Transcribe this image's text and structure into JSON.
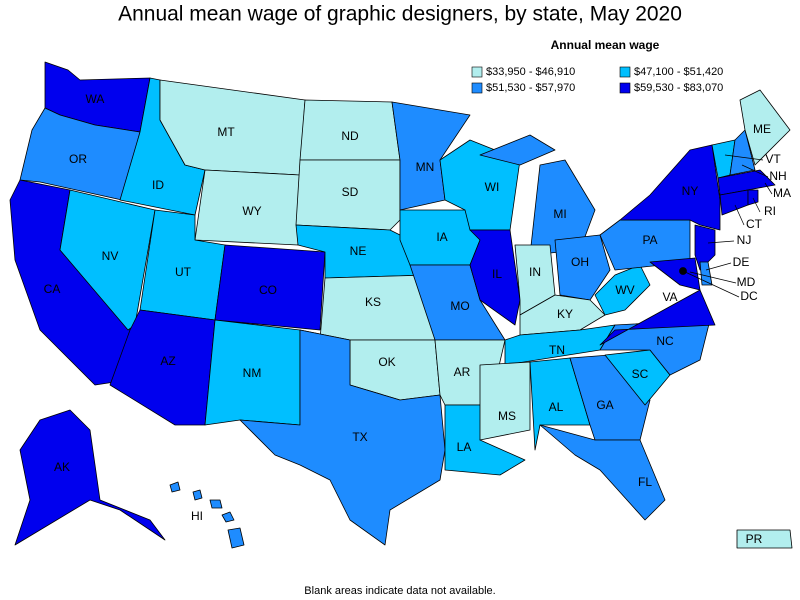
{
  "title": "Annual mean wage of graphic designers, by state, May 2020",
  "legend": {
    "title": "Annual mean wage",
    "items": [
      {
        "label": "$33,950 - $46,910",
        "color": "#b2eeee"
      },
      {
        "label": "$47,100 - $51,420",
        "color": "#00bfff"
      },
      {
        "label": "$51,530 - $57,970",
        "color": "#1e8cff"
      },
      {
        "label": "$59,530 - $83,070",
        "color": "#0000ee"
      }
    ]
  },
  "states": [
    {
      "abbr": "WA",
      "class": 3
    },
    {
      "abbr": "OR",
      "class": 2
    },
    {
      "abbr": "CA",
      "class": 3
    },
    {
      "abbr": "NV",
      "class": 1
    },
    {
      "abbr": "ID",
      "class": 1
    },
    {
      "abbr": "MT",
      "class": 0
    },
    {
      "abbr": "WY",
      "class": 0
    },
    {
      "abbr": "UT",
      "class": 1
    },
    {
      "abbr": "AZ",
      "class": 3
    },
    {
      "abbr": "CO",
      "class": 3
    },
    {
      "abbr": "NM",
      "class": 1
    },
    {
      "abbr": "ND",
      "class": 0
    },
    {
      "abbr": "SD",
      "class": 0
    },
    {
      "abbr": "NE",
      "class": 1
    },
    {
      "abbr": "KS",
      "class": 0
    },
    {
      "abbr": "OK",
      "class": 0
    },
    {
      "abbr": "TX",
      "class": 2
    },
    {
      "abbr": "MN",
      "class": 2
    },
    {
      "abbr": "IA",
      "class": 1
    },
    {
      "abbr": "MO",
      "class": 2
    },
    {
      "abbr": "AR",
      "class": 0
    },
    {
      "abbr": "LA",
      "class": 1
    },
    {
      "abbr": "WI",
      "class": 1
    },
    {
      "abbr": "IL",
      "class": 3
    },
    {
      "abbr": "MI",
      "class": 2
    },
    {
      "abbr": "IN",
      "class": 0
    },
    {
      "abbr": "OH",
      "class": 2
    },
    {
      "abbr": "KY",
      "class": 0
    },
    {
      "abbr": "TN",
      "class": 1
    },
    {
      "abbr": "MS",
      "class": 0
    },
    {
      "abbr": "AL",
      "class": 1
    },
    {
      "abbr": "GA",
      "class": 2
    },
    {
      "abbr": "FL",
      "class": 2
    },
    {
      "abbr": "SC",
      "class": 1
    },
    {
      "abbr": "NC",
      "class": 2
    },
    {
      "abbr": "VA",
      "class": 3
    },
    {
      "abbr": "WV",
      "class": 1
    },
    {
      "abbr": "PA",
      "class": 2
    },
    {
      "abbr": "NY",
      "class": 3
    },
    {
      "abbr": "VT",
      "class": 1
    },
    {
      "abbr": "NH",
      "class": 2
    },
    {
      "abbr": "ME",
      "class": 0
    },
    {
      "abbr": "MA",
      "class": 3
    },
    {
      "abbr": "CT",
      "class": 3
    },
    {
      "abbr": "RI",
      "class": 3
    },
    {
      "abbr": "NJ",
      "class": 3
    },
    {
      "abbr": "DE",
      "class": 2
    },
    {
      "abbr": "MD",
      "class": 3
    },
    {
      "abbr": "DC",
      "class": 3
    },
    {
      "abbr": "AK",
      "class": 3
    },
    {
      "abbr": "HI",
      "class": 2
    },
    {
      "abbr": "PR",
      "class": 0
    }
  ],
  "footnote": "Blank areas indicate data not available."
}
